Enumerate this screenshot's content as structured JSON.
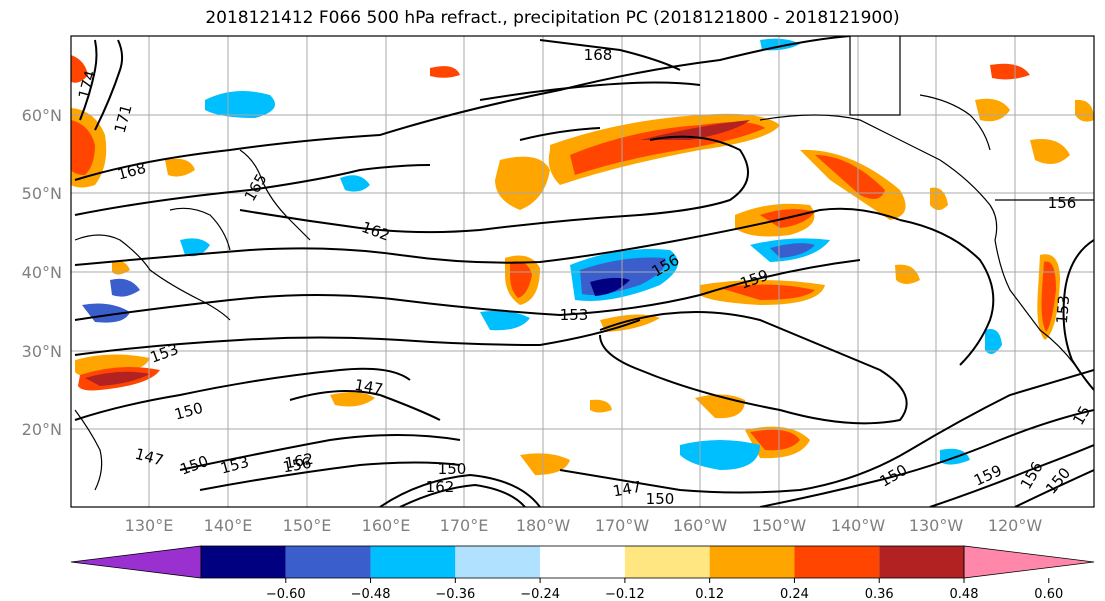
{
  "title": "2018121412 F066 500 hPa refract., precipitation PC (2018121800 - 2018121900)",
  "map": {
    "lat_labels": [
      "60°N",
      "50°N",
      "40°N",
      "30°N",
      "20°N"
    ],
    "lon_labels": [
      "130°E",
      "140°E",
      "150°E",
      "160°E",
      "170°E",
      "180°W",
      "170°W",
      "160°W",
      "150°W",
      "140°W",
      "130°W",
      "120°W"
    ],
    "contour_labels": [
      {
        "text": "174",
        "rot": -75
      },
      {
        "text": "171",
        "rot": -75
      },
      {
        "text": "168",
        "rot": -15
      },
      {
        "text": "165",
        "rot": -60
      },
      {
        "text": "168",
        "rot": 0
      },
      {
        "text": "162",
        "rot": 20
      },
      {
        "text": "156",
        "rot": -30
      },
      {
        "text": "159",
        "rot": -20
      },
      {
        "text": "156",
        "rot": 0
      },
      {
        "text": "153",
        "rot": -85
      },
      {
        "text": "153",
        "rot": 0
      },
      {
        "text": "153",
        "rot": -20
      },
      {
        "text": "147",
        "rot": 10
      },
      {
        "text": "150",
        "rot": -15
      },
      {
        "text": "147",
        "rot": 15
      },
      {
        "text": "150",
        "rot": -20
      },
      {
        "text": "153",
        "rot": -15
      },
      {
        "text": "156",
        "rot": -10
      },
      {
        "text": "162",
        "rot": -10
      },
      {
        "text": "150",
        "rot": 0
      },
      {
        "text": "162",
        "rot": 0
      },
      {
        "text": "147",
        "rot": -10
      },
      {
        "text": "150",
        "rot": 0
      },
      {
        "text": "150",
        "rot": -30
      },
      {
        "text": "159",
        "rot": -25
      },
      {
        "text": "156",
        "rot": -60
      },
      {
        "text": "150",
        "rot": -50
      },
      {
        "text": "15",
        "rot": -60
      }
    ]
  },
  "colorbar": {
    "ticks": [
      "−0.60",
      "−0.48",
      "−0.36",
      "−0.24",
      "−0.12",
      "0.12",
      "0.24",
      "0.36",
      "0.48",
      "0.60"
    ],
    "colors": [
      "#9b30d0",
      "#000080",
      "#3a5fcd",
      "#00bfff",
      "#b0e2ff",
      "#ffffff",
      "#ffe680",
      "#ffa500",
      "#ff4500",
      "#b22222",
      "#ff88aa"
    ]
  }
}
